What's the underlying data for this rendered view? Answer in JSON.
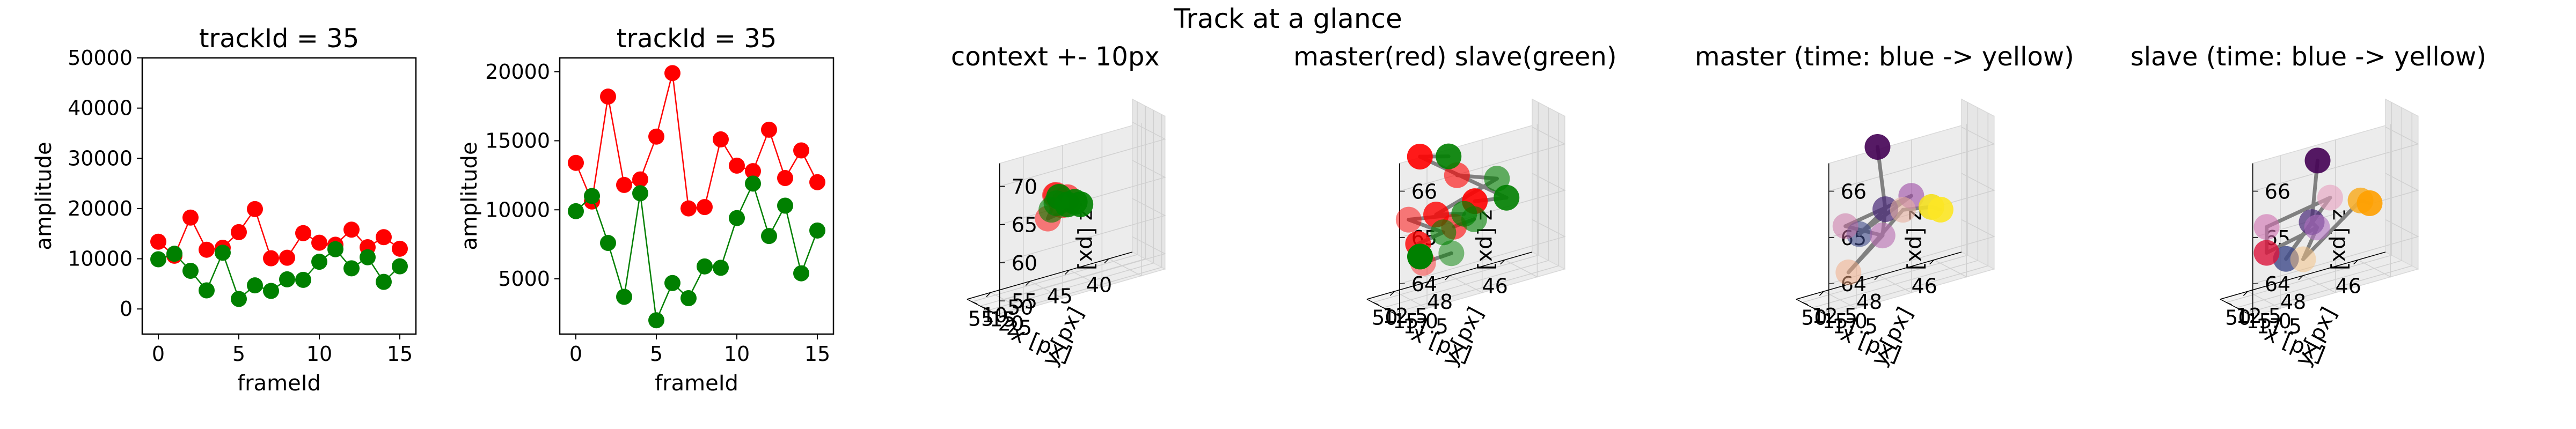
{
  "figure": {
    "suptitle": "Track at a glance"
  },
  "colors": {
    "master": "#ff0000",
    "slave": "#008000",
    "edge": "#808080",
    "pane": "#f2f2f2",
    "grid": "#d9d9d9"
  },
  "chart_data": [
    {
      "type": "line",
      "title": "trackId = 35",
      "xlabel": "frameId",
      "ylabel": "amplitude",
      "xlim": [
        -1,
        16
      ],
      "ylim": [
        -5000,
        50000
      ],
      "xticks": [
        0,
        5,
        10,
        15
      ],
      "yticks": [
        0,
        10000,
        20000,
        30000,
        40000,
        50000
      ],
      "x": [
        0,
        1,
        2,
        3,
        4,
        5,
        6,
        7,
        8,
        9,
        10,
        11,
        12,
        13,
        14,
        15
      ],
      "series": [
        {
          "color": "#ff0000",
          "values": [
            13400,
            10600,
            18200,
            11800,
            12200,
            15300,
            19900,
            10100,
            10200,
            15100,
            13200,
            12800,
            15800,
            12300,
            14300,
            12000
          ]
        },
        {
          "color": "#008000",
          "values": [
            9900,
            11000,
            7600,
            3700,
            11200,
            2000,
            4700,
            3600,
            5900,
            5800,
            9400,
            11900,
            8100,
            10300,
            5400,
            8500
          ]
        }
      ]
    },
    {
      "type": "line",
      "title": "trackId = 35",
      "xlabel": "frameId",
      "ylabel": "amplitude",
      "xlim": [
        -1,
        16
      ],
      "ylim": [
        1000,
        21000
      ],
      "xticks": [
        0,
        5,
        10,
        15
      ],
      "yticks": [
        5000,
        10000,
        15000,
        20000
      ],
      "x": [
        0,
        1,
        2,
        3,
        4,
        5,
        6,
        7,
        8,
        9,
        10,
        11,
        12,
        13,
        14,
        15
      ],
      "series": [
        {
          "color": "#ff0000",
          "values": [
            13400,
            10600,
            18200,
            11800,
            12200,
            15300,
            19900,
            10100,
            10200,
            15100,
            13200,
            12800,
            15800,
            12300,
            14300,
            12000
          ]
        },
        {
          "color": "#008000",
          "values": [
            9900,
            11000,
            7600,
            3700,
            11200,
            2000,
            4700,
            3600,
            5900,
            5800,
            9400,
            11900,
            8100,
            10300,
            5400,
            8500
          ]
        }
      ]
    },
    {
      "type": "scatter",
      "projection": "3d",
      "title": "context +- 10px",
      "xlabel": "x [px]",
      "ylabel": "y [px]",
      "zlabel": "z [px]",
      "xticks": [
        40,
        45,
        50,
        55
      ],
      "yticks": [
        10,
        15,
        20,
        25
      ],
      "zticks": [
        55,
        60,
        65,
        70
      ],
      "xlim": [
        37,
        58
      ],
      "ylim": [
        7,
        27
      ],
      "zlim": [
        53,
        73
      ],
      "points": [
        {
          "x": 49.5,
          "y": 15.5,
          "z": 62.0,
          "color": "#ff0000",
          "alpha": 0.5
        },
        {
          "x": 48.2,
          "y": 14.3,
          "z": 64.6,
          "color": "#ff0000",
          "alpha": 0.5
        },
        {
          "x": 46.8,
          "y": 14.6,
          "z": 63.9,
          "color": "#ff0000",
          "alpha": 0.6
        },
        {
          "x": 47.2,
          "y": 13.1,
          "z": 62.8,
          "color": "#ff0000",
          "alpha": 0.6
        },
        {
          "x": 48.6,
          "y": 15.6,
          "z": 64.8,
          "color": "#ff0000",
          "alpha": 0.6
        },
        {
          "x": 45.3,
          "y": 15.2,
          "z": 62.6,
          "color": "#008000",
          "alpha": 0.9
        },
        {
          "x": 46.1,
          "y": 15.6,
          "z": 63.2,
          "color": "#008000",
          "alpha": 0.9
        },
        {
          "x": 47.8,
          "y": 14.2,
          "z": 64.2,
          "color": "#008000",
          "alpha": 0.9
        },
        {
          "x": 47.0,
          "y": 15.4,
          "z": 63.1,
          "color": "#008000",
          "alpha": 0.9
        },
        {
          "x": 48.3,
          "y": 15.0,
          "z": 63.6,
          "color": "#008000",
          "alpha": 0.7
        },
        {
          "x": 48.9,
          "y": 14.8,
          "z": 62.9,
          "color": "#008000",
          "alpha": 0.6
        }
      ],
      "edges": [
        [
          0,
          5
        ],
        [
          1,
          6
        ],
        [
          2,
          7
        ],
        [
          3,
          8
        ],
        [
          4,
          9
        ],
        [
          0,
          10
        ]
      ]
    },
    {
      "type": "scatter",
      "projection": "3d",
      "title": "master(red) slave(green)",
      "xlabel": "x [px]",
      "ylabel": "y [px]",
      "zlabel": "z [px]",
      "xticks": [
        46,
        48,
        50
      ],
      "yticks": [
        12.5,
        15.0,
        17.5
      ],
      "zticks": [
        64,
        65,
        66
      ],
      "xlim": [
        45,
        51
      ],
      "ylim": [
        11,
        19
      ],
      "zlim": [
        63.3,
        66.6
      ],
      "points": [
        {
          "x": 49.8,
          "y": 15.9,
          "z": 66.4,
          "color": "#ff0000",
          "alpha": 0.9
        },
        {
          "x": 48.1,
          "y": 13.5,
          "z": 65.6,
          "color": "#ff0000",
          "alpha": 0.6
        },
        {
          "x": 47.6,
          "y": 14.5,
          "z": 65.0,
          "color": "#ff0000",
          "alpha": 0.9
        },
        {
          "x": 48.9,
          "y": 13.8,
          "z": 64.9,
          "color": "#ff0000",
          "alpha": 0.8
        },
        {
          "x": 50.4,
          "y": 17.2,
          "z": 65.2,
          "color": "#ff0000",
          "alpha": 0.5
        },
        {
          "x": 49.6,
          "y": 14.1,
          "z": 64.4,
          "color": "#ff0000",
          "alpha": 0.8
        },
        {
          "x": 49.3,
          "y": 13.3,
          "z": 63.9,
          "color": "#ff0000",
          "alpha": 0.4
        },
        {
          "x": 48.4,
          "y": 14.8,
          "z": 64.6,
          "color": "#ff0000",
          "alpha": 0.6
        },
        {
          "x": 48.7,
          "y": 15.5,
          "z": 66.2,
          "color": "#008000",
          "alpha": 0.9
        },
        {
          "x": 46.9,
          "y": 15.2,
          "z": 65.4,
          "color": "#008000",
          "alpha": 0.6
        },
        {
          "x": 46.7,
          "y": 16.2,
          "z": 65.0,
          "color": "#008000",
          "alpha": 0.9
        },
        {
          "x": 48.0,
          "y": 14.6,
          "z": 64.8,
          "color": "#008000",
          "alpha": 0.7
        },
        {
          "x": 48.7,
          "y": 14.2,
          "z": 64.5,
          "color": "#008000",
          "alpha": 0.6
        },
        {
          "x": 49.5,
          "y": 13.9,
          "z": 64.1,
          "color": "#008000",
          "alpha": 1.0
        },
        {
          "x": 48.2,
          "y": 12.8,
          "z": 63.9,
          "color": "#008000",
          "alpha": 0.5
        },
        {
          "x": 47.8,
          "y": 15.7,
          "z": 64.7,
          "color": "#008000",
          "alpha": 0.6
        }
      ],
      "edges": [
        [
          0,
          8
        ],
        [
          1,
          9
        ],
        [
          2,
          10
        ],
        [
          3,
          11
        ],
        [
          4,
          12
        ],
        [
          5,
          13
        ],
        [
          6,
          14
        ],
        [
          7,
          15
        ],
        [
          0,
          10
        ],
        [
          4,
          11
        ],
        [
          3,
          9
        ],
        [
          5,
          12
        ]
      ]
    },
    {
      "type": "scatter",
      "projection": "3d",
      "title": "master (time: blue -> yellow)",
      "xlabel": "x [px]",
      "ylabel": "y [px]",
      "zlabel": "z [px]",
      "xticks": [
        46,
        48,
        50
      ],
      "yticks": [
        12.5,
        15.0,
        17.5
      ],
      "zticks": [
        64,
        65,
        66
      ],
      "xlim": [
        45,
        51
      ],
      "ylim": [
        11,
        19
      ],
      "zlim": [
        63.3,
        66.6
      ],
      "points": [
        {
          "x": 48.7,
          "y": 15.4,
          "z": 66.4,
          "color": "#440154",
          "alpha": 0.9
        },
        {
          "x": 48.4,
          "y": 15.3,
          "z": 65.0,
          "color": "#482878",
          "alpha": 0.7
        },
        {
          "x": 49.3,
          "y": 15.0,
          "z": 64.6,
          "color": "#3e4a89",
          "alpha": 0.6
        },
        {
          "x": 47.4,
          "y": 14.9,
          "z": 65.1,
          "color": "#9c4aa5",
          "alpha": 0.6
        },
        {
          "x": 50.1,
          "y": 17.0,
          "z": 65.0,
          "color": "#c86aa0",
          "alpha": 0.5
        },
        {
          "x": 48.4,
          "y": 14.6,
          "z": 64.4,
          "color": "#b86ab0",
          "alpha": 0.6
        },
        {
          "x": 49.4,
          "y": 13.0,
          "z": 63.7,
          "color": "#f2a880",
          "alpha": 0.5
        },
        {
          "x": 47.6,
          "y": 14.2,
          "z": 64.8,
          "color": "#e8b0a0",
          "alpha": 0.6
        },
        {
          "x": 46.8,
          "y": 15.8,
          "z": 64.8,
          "color": "#f4e020",
          "alpha": 0.9
        },
        {
          "x": 46.5,
          "y": 16.0,
          "z": 64.7,
          "color": "#fde725",
          "alpha": 0.9
        }
      ],
      "edges": [
        [
          0,
          1
        ],
        [
          1,
          2
        ],
        [
          2,
          3
        ],
        [
          3,
          4
        ],
        [
          4,
          5
        ],
        [
          5,
          6
        ],
        [
          6,
          7
        ],
        [
          7,
          8
        ],
        [
          8,
          9
        ],
        [
          1,
          5
        ]
      ]
    },
    {
      "type": "scatter",
      "projection": "3d",
      "title": "slave (time: blue -> yellow)",
      "xlabel": "x [px]",
      "ylabel": "y [px]",
      "zlabel": "z [px]",
      "xticks": [
        46,
        48,
        50
      ],
      "yticks": [
        12.5,
        15.0,
        17.5
      ],
      "zticks": [
        64,
        65,
        66
      ],
      "xlim": [
        45,
        51
      ],
      "ylim": [
        11,
        19
      ],
      "zlim": [
        63.3,
        66.6
      ],
      "points": [
        {
          "x": 48.1,
          "y": 15.3,
          "z": 66.0,
          "color": "#440154",
          "alpha": 0.9
        },
        {
          "x": 48.3,
          "y": 15.2,
          "z": 64.7,
          "color": "#482878",
          "alpha": 0.7
        },
        {
          "x": 49.1,
          "y": 14.3,
          "z": 64.0,
          "color": "#3e4a89",
          "alpha": 0.8
        },
        {
          "x": 47.6,
          "y": 15.0,
          "z": 65.1,
          "color": "#e8a0c0",
          "alpha": 0.6
        },
        {
          "x": 50.2,
          "y": 17.0,
          "z": 65.0,
          "color": "#d070b0",
          "alpha": 0.6
        },
        {
          "x": 49.7,
          "y": 13.6,
          "z": 64.2,
          "color": "#dc143c",
          "alpha": 0.8
        },
        {
          "x": 48.0,
          "y": 14.5,
          "z": 64.5,
          "color": "#b070c0",
          "alpha": 0.6
        },
        {
          "x": 48.3,
          "y": 13.1,
          "z": 63.8,
          "color": "#f4c080",
          "alpha": 0.5
        },
        {
          "x": 46.6,
          "y": 15.7,
          "z": 64.9,
          "color": "#f7b030",
          "alpha": 0.9
        },
        {
          "x": 46.3,
          "y": 15.9,
          "z": 64.8,
          "color": "#ffa000",
          "alpha": 0.9
        }
      ],
      "edges": [
        [
          0,
          1
        ],
        [
          1,
          2
        ],
        [
          2,
          3
        ],
        [
          3,
          4
        ],
        [
          4,
          5
        ],
        [
          5,
          6
        ],
        [
          6,
          7
        ],
        [
          7,
          8
        ],
        [
          8,
          9
        ],
        [
          1,
          6
        ]
      ]
    }
  ]
}
